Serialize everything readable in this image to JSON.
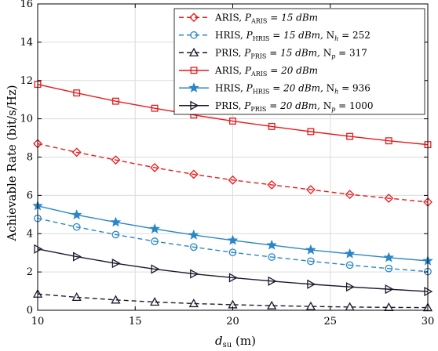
{
  "chart_data": {
    "type": "line",
    "xlabel_main": "d",
    "xlabel_sub": "su",
    "xlabel_unit": " (m)",
    "ylabel": "Achievable Rate (bit/s/Hz)",
    "xlim": [
      10,
      30
    ],
    "ylim": [
      0,
      16
    ],
    "xticks": [
      10,
      15,
      20,
      25,
      30
    ],
    "yticks": [
      0,
      2,
      4,
      6,
      8,
      10,
      12,
      14,
      16
    ],
    "grid": true,
    "legend_position": "top-right",
    "x": [
      10,
      12,
      14,
      16,
      18,
      20,
      22,
      24,
      26,
      28,
      30
    ],
    "series": [
      {
        "name": "ARIS, P_ARIS = 15 dBm",
        "color": "#e8191b",
        "dashed": true,
        "marker": "diamond",
        "label_parts": [
          "ARIS, ",
          "P",
          "ARIS",
          " = 15 dBm"
        ],
        "values": [
          8.7,
          8.25,
          7.85,
          7.45,
          7.1,
          6.8,
          6.55,
          6.3,
          6.05,
          5.85,
          5.65
        ]
      },
      {
        "name": "HRIS, P_HRIS = 15 dBm, N_h = 252",
        "color": "#2a86c6",
        "dashed": true,
        "marker": "circle",
        "label_parts": [
          "HRIS, ",
          "P",
          "HRIS",
          " = 15 dBm, ",
          "N",
          "h",
          " = 252"
        ],
        "values": [
          4.8,
          4.35,
          3.95,
          3.6,
          3.3,
          3.02,
          2.78,
          2.56,
          2.36,
          2.18,
          2.02
        ]
      },
      {
        "name": "PRIS, P_PRIS = 15 dBm, N_p = 317",
        "color": "#1a1a2e",
        "dashed": true,
        "marker": "triangle-up",
        "label_parts": [
          "PRIS, ",
          "P",
          "PRIS",
          " = 15 dBm, ",
          "N",
          "p",
          " = 317"
        ],
        "values": [
          0.85,
          0.68,
          0.54,
          0.43,
          0.35,
          0.29,
          0.24,
          0.2,
          0.17,
          0.15,
          0.14
        ]
      },
      {
        "name": "ARIS, P_ARIS = 20 dBm",
        "color": "#e8191b",
        "dashed": false,
        "marker": "square",
        "label_parts": [
          "ARIS, ",
          "P",
          "ARIS",
          " = 20 dBm"
        ],
        "values": [
          11.8,
          11.35,
          10.92,
          10.55,
          10.2,
          9.88,
          9.6,
          9.33,
          9.08,
          8.85,
          8.65
        ]
      },
      {
        "name": "HRIS, P_HRIS = 20 dBm, N_h = 936",
        "color": "#2a86c6",
        "dashed": false,
        "marker": "star",
        "label_parts": [
          "HRIS, ",
          "P",
          "HRIS",
          " = 20 dBm, ",
          "N",
          "h",
          " = 936"
        ],
        "values": [
          5.45,
          4.98,
          4.6,
          4.25,
          3.93,
          3.65,
          3.4,
          3.15,
          2.95,
          2.75,
          2.58
        ]
      },
      {
        "name": "PRIS, P_PRIS = 20 dBm, N_p = 1000",
        "color": "#1a1a2e",
        "dashed": false,
        "marker": "triangle-right",
        "label_parts": [
          "PRIS, ",
          "P",
          "PRIS",
          " = 20 dBm, ",
          "N",
          "p",
          " = 1000"
        ],
        "values": [
          3.2,
          2.8,
          2.45,
          2.15,
          1.9,
          1.7,
          1.52,
          1.36,
          1.22,
          1.1,
          0.98
        ]
      }
    ]
  }
}
